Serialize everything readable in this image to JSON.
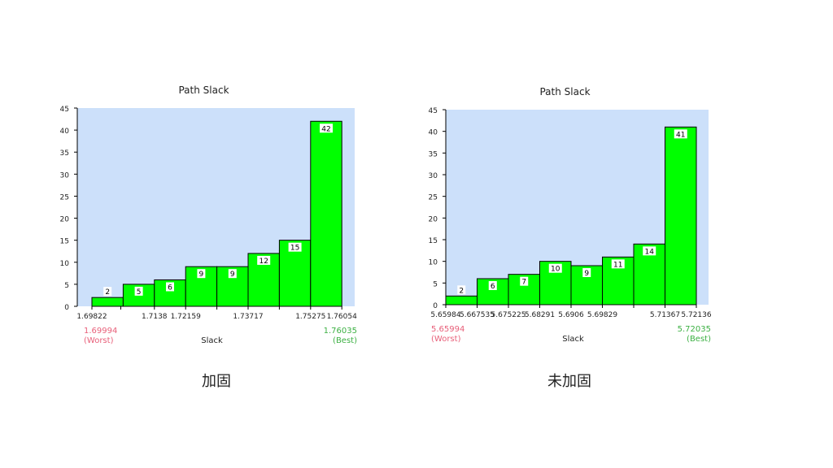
{
  "chart_data": [
    {
      "type": "bar",
      "title": "Path Slack",
      "xlabel": "Slack",
      "ylabel": "",
      "ylim": [
        0,
        45
      ],
      "yticks": [
        0,
        5,
        10,
        15,
        20,
        25,
        30,
        35,
        40,
        45
      ],
      "bin_edges": [
        1.69822,
        1.70541,
        1.7138,
        1.72159,
        1.72938,
        1.73717,
        1.74496,
        1.75275,
        1.76054
      ],
      "xtick_labels": [
        "1.69822",
        "1.7138",
        "1.72159",
        "1.73717",
        "1.75275",
        "1.76054"
      ],
      "xtick_values": [
        1.69822,
        1.7138,
        1.72159,
        1.73717,
        1.75275,
        1.76054
      ],
      "values": [
        2,
        5,
        6,
        9,
        9,
        12,
        15,
        42
      ],
      "worst": {
        "value": "1.69994",
        "label": "(Worst)"
      },
      "best": {
        "value": "1.76035",
        "label": "(Best)"
      },
      "caption": "加固",
      "colors": {
        "bar": "#00ff00",
        "plot_bg": "#cce0fa",
        "worst": "#e8607a",
        "best": "#3cb043"
      }
    },
    {
      "type": "bar",
      "title": "Path Slack",
      "xlabel": "Slack",
      "ylabel": "",
      "ylim": [
        0,
        45
      ],
      "yticks": [
        0,
        5,
        10,
        15,
        20,
        25,
        30,
        35,
        40,
        45
      ],
      "bin_edges": [
        5.65984,
        5.667535,
        5.675225,
        5.68291,
        5.6906,
        5.69829,
        5.70598,
        5.71367,
        5.72136
      ],
      "xtick_labels": [
        "5.65984",
        "5.667535",
        "5.675225",
        "5.68291",
        "5.6906",
        "5.69829",
        "5.71367",
        "5.72136"
      ],
      "xtick_values": [
        5.65984,
        5.667535,
        5.675225,
        5.68291,
        5.6906,
        5.69829,
        5.71367,
        5.72136
      ],
      "values": [
        2,
        6,
        7,
        10,
        9,
        11,
        14,
        41
      ],
      "worst": {
        "value": "5.65994",
        "label": "(Worst)"
      },
      "best": {
        "value": "5.72035",
        "label": "(Best)"
      },
      "caption": "未加固",
      "colors": {
        "bar": "#00ff00",
        "plot_bg": "#cce0fa",
        "worst": "#e8607a",
        "best": "#3cb043"
      }
    }
  ]
}
